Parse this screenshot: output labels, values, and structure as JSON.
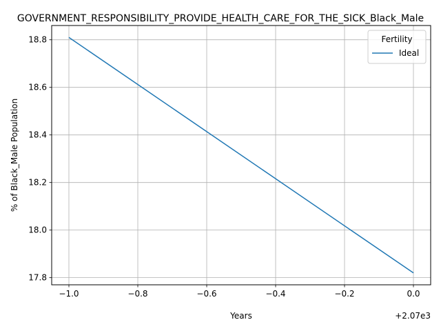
{
  "chart_data": {
    "type": "line",
    "title": "GOVERNMENT_RESPONSIBILITY_PROVIDE_HEALTH_CARE_FOR_THE_SICK_Black_Male",
    "xlabel": "Years",
    "ylabel": "% of Black_Male Population",
    "x_offset_label": "+2.07e3",
    "xlim": [
      -1.05,
      0.05
    ],
    "ylim": [
      17.77,
      18.86
    ],
    "x_ticks": [
      -1.0,
      -0.8,
      -0.6,
      -0.4,
      -0.2,
      0.0
    ],
    "x_tick_labels": [
      "−1.0",
      "−0.8",
      "−0.6",
      "−0.4",
      "−0.2",
      "0.0"
    ],
    "y_ticks": [
      17.8,
      18.0,
      18.2,
      18.4,
      18.6,
      18.8
    ],
    "y_tick_labels": [
      "17.8",
      "18.0",
      "18.2",
      "18.4",
      "18.6",
      "18.8"
    ],
    "grid": true,
    "legend": {
      "title": "Fertility",
      "placement": "top-right"
    },
    "series": [
      {
        "name": "Ideal",
        "color": "#1f77b4",
        "x": [
          -1.0,
          0.0
        ],
        "y": [
          18.81,
          17.82
        ]
      }
    ]
  }
}
